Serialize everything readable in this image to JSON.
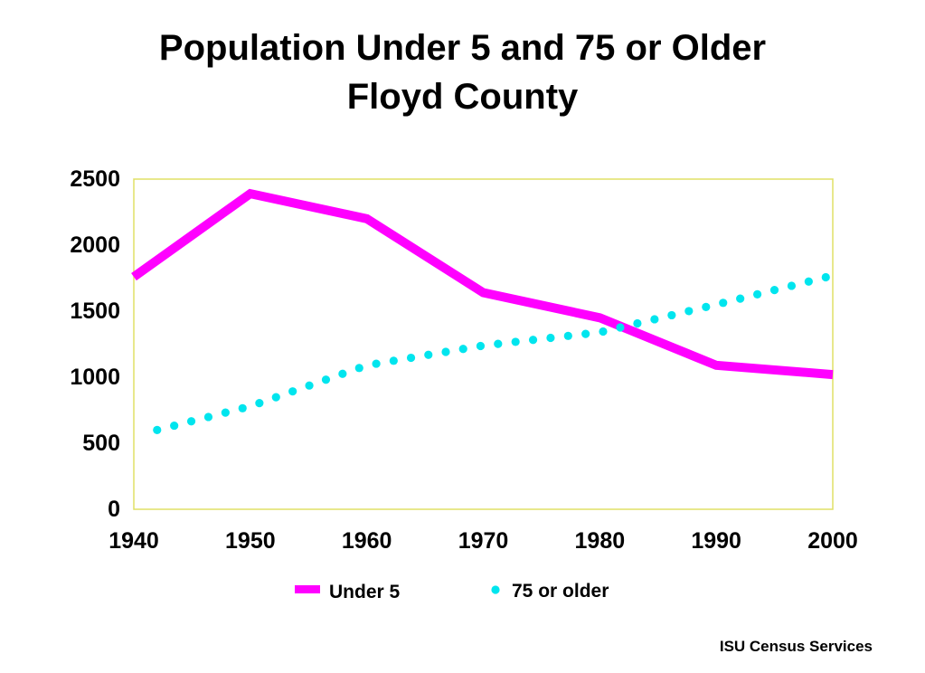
{
  "chart_data": {
    "type": "line",
    "title": "Population Under 5 and 75 or Older",
    "subtitle": "Floyd County",
    "x": [
      1940,
      1950,
      1960,
      1970,
      1980,
      1990,
      2000
    ],
    "x_ticks": [
      "1940",
      "1950",
      "1960",
      "1970",
      "1980",
      "1990",
      "2000"
    ],
    "y_ticks": [
      "0",
      "500",
      "1000",
      "1500",
      "2000",
      "2500"
    ],
    "xlim": [
      1940,
      2000
    ],
    "ylim": [
      0,
      2500
    ],
    "grid": false,
    "legend_position": "bottom",
    "plot_border_color": "#e0e066",
    "series": [
      {
        "name": "Under 5",
        "style": "solid",
        "color": "#ff00ff",
        "points": [
          [
            1940,
            1760
          ],
          [
            1950,
            2390
          ],
          [
            1960,
            2200
          ],
          [
            1970,
            1640
          ],
          [
            1980,
            1450
          ],
          [
            1990,
            1090
          ],
          [
            2000,
            1020
          ]
        ]
      },
      {
        "name": "75 or older",
        "style": "dotted",
        "color": "#00e5ee",
        "points": [
          [
            1942,
            600
          ],
          [
            1950,
            780
          ],
          [
            1960,
            1090
          ],
          [
            1970,
            1240
          ],
          [
            1980,
            1340
          ],
          [
            1990,
            1550
          ],
          [
            2000,
            1770
          ]
        ]
      }
    ]
  },
  "footer": {
    "source": "ISU Census Services"
  }
}
